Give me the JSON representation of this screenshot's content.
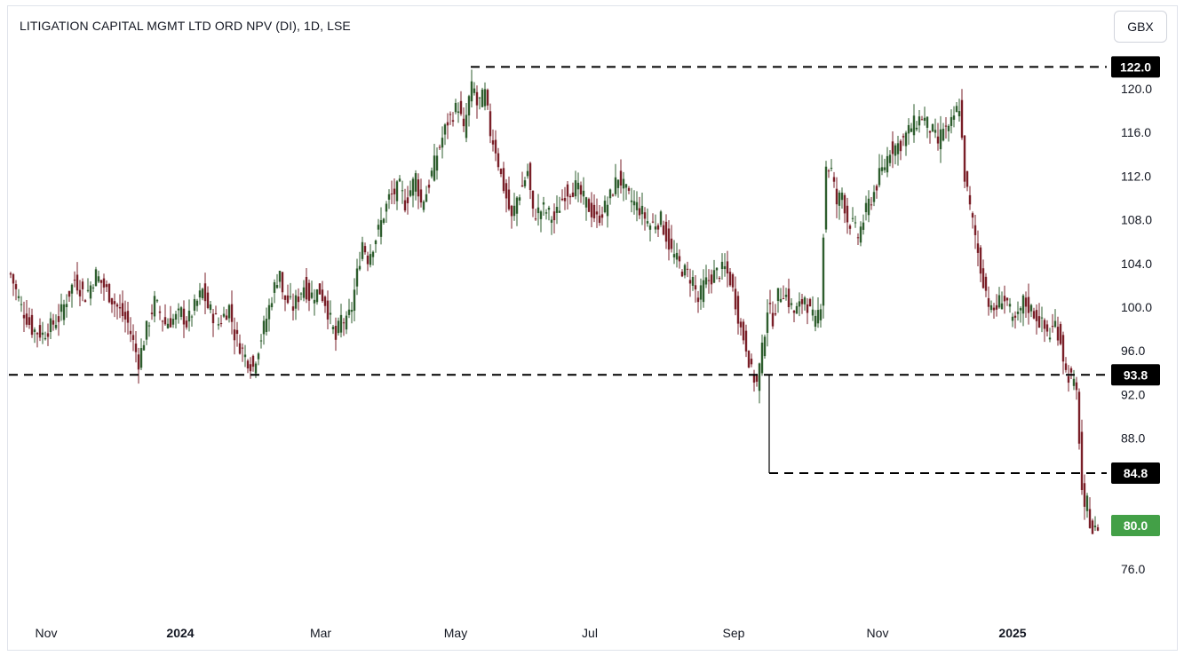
{
  "header": {
    "title": "LITIGATION CAPITAL MGMT LTD ORD NPV (DI), 1D, LSE",
    "currency_button": "GBX"
  },
  "chart_data": {
    "type": "candlestick",
    "title": "LITIGATION CAPITAL MGMT LTD ORD NPV (DI), 1D, LSE",
    "currency": "GBX",
    "x_tick_labels": [
      "Nov",
      "2024",
      "Mar",
      "May",
      "Jul",
      "Sep",
      "Nov",
      "2025"
    ],
    "y_tick_labels": [
      "120.0",
      "116.0",
      "112.0",
      "108.0",
      "104.0",
      "100.0",
      "96.0",
      "92.0",
      "88.0",
      "76.0"
    ],
    "ylim": [
      74,
      125
    ],
    "up_color": "#2e5e2e",
    "down_color": "#7a1f28",
    "horizontal_levels": [
      {
        "value": 122.0,
        "label": "122.0"
      },
      {
        "value": 93.8,
        "label": "93.8"
      },
      {
        "value": 84.8,
        "label": "84.8"
      }
    ],
    "last_price": {
      "value": 80.0,
      "label": "80.0",
      "color": "#43a047"
    },
    "path": [
      [
        0,
        103
      ],
      [
        4,
        100
      ],
      [
        8,
        98
      ],
      [
        12,
        97.5
      ],
      [
        18,
        99
      ],
      [
        24,
        102.5
      ],
      [
        28,
        101
      ],
      [
        32,
        103
      ],
      [
        36,
        101.5
      ],
      [
        40,
        100
      ],
      [
        44,
        98.5
      ],
      [
        48,
        95
      ],
      [
        51,
        98
      ],
      [
        54,
        100.5
      ],
      [
        58,
        98.5
      ],
      [
        62,
        99
      ],
      [
        64,
        99.5
      ],
      [
        66,
        98.5
      ],
      [
        70,
        100.5
      ],
      [
        72,
        101.5
      ],
      [
        74,
        100
      ],
      [
        78,
        98.5
      ],
      [
        82,
        100
      ],
      [
        84,
        97.5
      ],
      [
        88,
        95.5
      ],
      [
        91,
        94.5
      ],
      [
        92,
        95.5
      ],
      [
        96,
        99
      ],
      [
        98,
        101
      ],
      [
        101,
        103.5
      ],
      [
        102,
        101
      ],
      [
        106,
        100
      ],
      [
        110,
        102
      ],
      [
        112,
        101
      ],
      [
        116,
        101.5
      ],
      [
        118,
        100.5
      ],
      [
        122,
        97
      ],
      [
        124,
        99
      ],
      [
        126,
        98.5
      ],
      [
        128,
        100
      ],
      [
        132,
        106
      ],
      [
        134,
        104.5
      ],
      [
        138,
        107
      ],
      [
        142,
        110
      ],
      [
        146,
        111
      ],
      [
        148,
        109.5
      ],
      [
        152,
        112
      ],
      [
        154,
        109.5
      ],
      [
        156,
        110.5
      ],
      [
        160,
        114
      ],
      [
        164,
        117
      ],
      [
        168,
        118.5
      ],
      [
        170,
        116
      ],
      [
        172,
        119
      ],
      [
        173.5,
        120.5
      ],
      [
        175,
        118.5
      ],
      [
        178,
        119.5
      ],
      [
        180,
        116
      ],
      [
        182,
        114.5
      ],
      [
        184,
        112
      ],
      [
        188,
        108
      ],
      [
        190,
        110
      ],
      [
        192,
        111
      ],
      [
        194,
        112.5
      ],
      [
        196,
        108.5
      ],
      [
        200,
        109
      ],
      [
        204,
        108
      ],
      [
        208,
        110.5
      ],
      [
        212,
        111
      ],
      [
        216,
        109.5
      ],
      [
        220,
        108
      ],
      [
        224,
        109.5
      ],
      [
        228,
        112
      ],
      [
        232,
        110
      ],
      [
        236,
        109
      ],
      [
        240,
        107.5
      ],
      [
        244,
        108
      ],
      [
        248,
        105
      ],
      [
        252,
        103.5
      ],
      [
        256,
        102.5
      ],
      [
        258,
        100.5
      ],
      [
        260,
        102
      ],
      [
        264,
        103
      ],
      [
        268,
        103.5
      ],
      [
        270,
        102.5
      ],
      [
        272,
        100.5
      ],
      [
        274,
        98
      ],
      [
        276,
        96.5
      ],
      [
        278,
        94
      ],
      [
        280,
        93
      ],
      [
        282,
        96
      ],
      [
        284,
        100
      ],
      [
        286,
        99
      ],
      [
        288,
        101
      ],
      [
        290,
        101.5
      ],
      [
        292,
        100.5
      ],
      [
        294,
        99.5
      ],
      [
        296,
        100
      ],
      [
        298,
        101
      ],
      [
        300,
        99.5
      ],
      [
        302,
        98.5
      ],
      [
        304,
        100.5
      ],
      [
        306,
        113
      ],
      [
        308,
        112.5
      ],
      [
        310,
        109.5
      ],
      [
        312,
        110.5
      ],
      [
        314,
        108
      ],
      [
        316,
        107.5
      ],
      [
        318,
        106.5
      ],
      [
        320,
        108
      ],
      [
        322,
        109.5
      ],
      [
        324,
        110.5
      ],
      [
        326,
        112
      ],
      [
        328,
        113
      ],
      [
        330,
        114.5
      ],
      [
        334,
        115
      ],
      [
        338,
        116.5
      ],
      [
        342,
        117.5
      ],
      [
        346,
        116
      ],
      [
        348,
        115
      ],
      [
        350,
        116.5
      ],
      [
        352,
        116
      ],
      [
        354,
        117.5
      ],
      [
        356,
        118.5
      ],
      [
        358,
        112
      ],
      [
        360,
        109
      ],
      [
        362,
        106.5
      ],
      [
        364,
        103.5
      ],
      [
        366,
        101.5
      ],
      [
        368,
        99.5
      ],
      [
        370,
        100
      ],
      [
        372,
        101
      ],
      [
        374,
        100.5
      ],
      [
        376,
        98.5
      ],
      [
        378,
        99
      ],
      [
        380,
        100.5
      ],
      [
        384,
        99.5
      ],
      [
        388,
        98
      ],
      [
        390,
        97.5
      ],
      [
        392,
        98.5
      ],
      [
        394,
        97
      ],
      [
        396,
        94
      ],
      [
        398,
        93.5
      ],
      [
        400,
        92
      ],
      [
        401.5,
        86
      ],
      [
        402.5,
        80.5
      ],
      [
        404,
        82
      ],
      [
        405,
        80.5
      ],
      [
        406,
        79.5
      ],
      [
        407,
        79.5
      ],
      [
        408,
        80
      ]
    ]
  }
}
